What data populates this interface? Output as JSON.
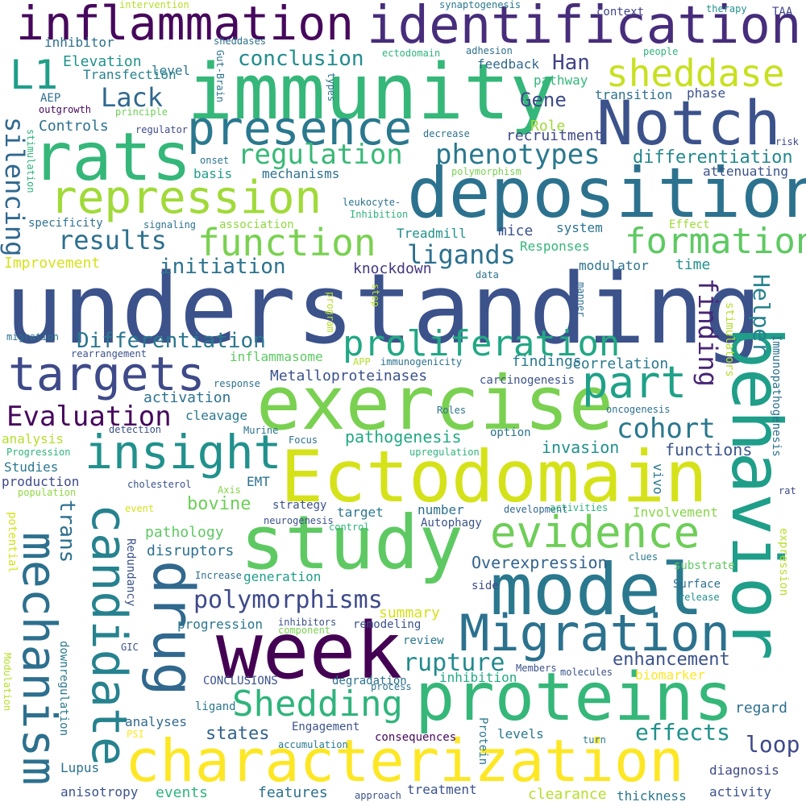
{
  "words": [
    {
      "text": "understanding",
      "color": "#3b528b"
    },
    {
      "text": "Ectodomain",
      "color": "#d5e21a"
    },
    {
      "text": "exercise",
      "color": "#7ad151"
    },
    {
      "text": "immunity",
      "color": "#35b779"
    },
    {
      "text": "deposition",
      "color": "#2c728e"
    },
    {
      "text": "behavior",
      "color": "#1f9e89"
    },
    {
      "text": "characterization",
      "color": "#fde725"
    },
    {
      "text": "week",
      "color": "#440154"
    },
    {
      "text": "study",
      "color": "#5ec962"
    },
    {
      "text": "proteins",
      "color": "#35b779"
    },
    {
      "text": "model",
      "color": "#2a788e"
    },
    {
      "text": "identification",
      "color": "#472d7b"
    },
    {
      "text": "inflammation",
      "color": "#46085c"
    },
    {
      "text": "Notch",
      "color": "#3b528b"
    },
    {
      "text": "rats",
      "color": "#35b779"
    },
    {
      "text": "presence",
      "color": "#2a788e"
    },
    {
      "text": "repression",
      "color": "#a0da39"
    },
    {
      "text": "Migration",
      "color": "#2c728e"
    },
    {
      "text": "drug",
      "color": "#31688e"
    },
    {
      "text": "candidate",
      "color": "#26828e"
    },
    {
      "text": "mechanism",
      "color": "#2d708e"
    },
    {
      "text": "insight",
      "color": "#21918c"
    },
    {
      "text": "targets",
      "color": "#3e4a89"
    },
    {
      "text": "evidence",
      "color": "#6ece58"
    },
    {
      "text": "function",
      "color": "#7ad151"
    },
    {
      "text": "formation",
      "color": "#5ec962"
    },
    {
      "text": "sheddase",
      "color": "#c8e020"
    },
    {
      "text": "proliferation",
      "color": "#22a884"
    },
    {
      "text": "part",
      "color": "#1fa187"
    },
    {
      "text": "Shedding",
      "color": "#2fb47c"
    },
    {
      "text": "L1",
      "color": "#1f9e89"
    },
    {
      "text": "polymorphisms",
      "color": "#3e4a89"
    },
    {
      "text": "rupture",
      "color": "#238a8d"
    },
    {
      "text": "effects",
      "color": "#20928c"
    },
    {
      "text": "regulation",
      "color": "#38b977"
    },
    {
      "text": "phenotypes",
      "color": "#2a788e"
    },
    {
      "text": "Evaluation",
      "color": "#46085c"
    },
    {
      "text": "cohort",
      "color": "#2a788e"
    },
    {
      "text": "silencing",
      "color": "#31688e"
    },
    {
      "text": "finding",
      "color": "#482576"
    },
    {
      "text": "Helper",
      "color": "#26828e"
    },
    {
      "text": "results",
      "color": "#2d708e"
    },
    {
      "text": "ligands",
      "color": "#2d708e"
    },
    {
      "text": "Lack",
      "color": "#31688e"
    },
    {
      "text": "conclusion",
      "color": "#228c8d"
    },
    {
      "text": "Differentiation",
      "color": "#2a768e"
    },
    {
      "text": "initiation",
      "color": "#2c728e"
    },
    {
      "text": "differentiation",
      "color": "#23898e"
    },
    {
      "text": "Gene",
      "color": "#3e4a89"
    },
    {
      "text": "Han",
      "color": "#414487"
    },
    {
      "text": "loop",
      "color": "#3e4a89"
    },
    {
      "text": "trans",
      "color": "#2d708e"
    },
    {
      "text": "Overexpression",
      "color": "#33638d"
    },
    {
      "text": "enhancement",
      "color": "#3b528b"
    },
    {
      "text": "states",
      "color": "#33638d"
    },
    {
      "text": "pathogenesis",
      "color": "#22a884"
    },
    {
      "text": "bovine",
      "color": "#6ece58"
    },
    {
      "text": "functions",
      "color": "#3a548c"
    },
    {
      "text": "invasion",
      "color": "#21918c"
    },
    {
      "text": "Metalloproteinases",
      "color": "#3b528b"
    },
    {
      "text": "findings",
      "color": "#2a788e"
    },
    {
      "text": "correlation",
      "color": "#2a788e"
    },
    {
      "text": "inflammasome",
      "color": "#5ec962"
    },
    {
      "text": "activation",
      "color": "#2c728e"
    },
    {
      "text": "cleavage",
      "color": "#2a788e"
    },
    {
      "text": "knockdown",
      "color": "#453781"
    },
    {
      "text": "Treadmill",
      "color": "#21918c"
    },
    {
      "text": "mice",
      "color": "#3b528b"
    },
    {
      "text": "system",
      "color": "#2c728e"
    },
    {
      "text": "modulator",
      "color": "#2c728e"
    },
    {
      "text": "time",
      "color": "#21918c"
    },
    {
      "text": "Responses",
      "color": "#35b779"
    },
    {
      "text": "mechanisms",
      "color": "#2d708e"
    },
    {
      "text": "basis",
      "color": "#1f9e89"
    },
    {
      "text": "Controls",
      "color": "#2c728e"
    },
    {
      "text": "Elevation",
      "color": "#21918c"
    },
    {
      "text": "Transfection",
      "color": "#26828e"
    },
    {
      "text": "level",
      "color": "#2a788e"
    },
    {
      "text": "inhibitor",
      "color": "#2d708e"
    },
    {
      "text": "Role",
      "color": "#a0da39"
    },
    {
      "text": "recruitment",
      "color": "#3e4a89"
    },
    {
      "text": "feedback",
      "color": "#31688e"
    },
    {
      "text": "pathway",
      "color": "#35b779"
    },
    {
      "text": "transition",
      "color": "#2d708e"
    },
    {
      "text": "phase",
      "color": "#3b528b"
    },
    {
      "text": "attenuating",
      "color": "#3b528b"
    },
    {
      "text": "context",
      "color": "#414487"
    },
    {
      "text": "therapy",
      "color": "#21918c"
    },
    {
      "text": "TAA",
      "color": "#404688"
    },
    {
      "text": "Improvement",
      "color": "#d5e21a"
    },
    {
      "text": "specificity",
      "color": "#2d708e"
    },
    {
      "text": "association",
      "color": "#90d743"
    },
    {
      "text": "Effect",
      "color": "#a0da39"
    },
    {
      "text": "summary",
      "color": "#d5e21a"
    },
    {
      "text": "generation",
      "color": "#1f9e89"
    },
    {
      "text": "progression",
      "color": "#2a768e"
    },
    {
      "text": "remodeling",
      "color": "#3b528b"
    },
    {
      "text": "review",
      "color": "#2a788e"
    },
    {
      "text": "pathology",
      "color": "#5ec962"
    },
    {
      "text": "disruptors",
      "color": "#2d708e"
    },
    {
      "text": "Redundancy",
      "color": "#3b528b"
    },
    {
      "text": "strategy",
      "color": "#3b528b"
    },
    {
      "text": "target",
      "color": "#2a788e"
    },
    {
      "text": "number",
      "color": "#2d708e"
    },
    {
      "text": "Involvement",
      "color": "#86d549"
    },
    {
      "text": "Autophagy",
      "color": "#3b528b"
    },
    {
      "text": "EMT",
      "color": "#2d708e"
    },
    {
      "text": "vivo",
      "color": "#2a788e"
    },
    {
      "text": "Immunopathogenesis",
      "color": "#2c728e"
    },
    {
      "text": "stimulators",
      "color": "#b5de2b"
    },
    {
      "text": "Studies",
      "color": "#2a788e"
    },
    {
      "text": "production",
      "color": "#3e4a89"
    },
    {
      "text": "analysis",
      "color": "#b5de2b"
    },
    {
      "text": "Lupus",
      "color": "#2c728e"
    },
    {
      "text": "anisotropy",
      "color": "#3b528b"
    },
    {
      "text": "events",
      "color": "#2fb47c"
    },
    {
      "text": "features",
      "color": "#2c728e"
    },
    {
      "text": "treatment",
      "color": "#3b528b"
    },
    {
      "text": "clearance",
      "color": "#b5de2b"
    },
    {
      "text": "thickness",
      "color": "#2a788e"
    },
    {
      "text": "activity",
      "color": "#3b528b"
    },
    {
      "text": "diagnosis",
      "color": "#3e4a89"
    },
    {
      "text": "regard",
      "color": "#2d708e"
    },
    {
      "text": "biomarker",
      "color": "#fde725"
    },
    {
      "text": "degradation",
      "color": "#2c728e"
    },
    {
      "text": "inhibition",
      "color": "#22a884"
    },
    {
      "text": "CONCLUSIONS",
      "color": "#3b528b"
    },
    {
      "text": "analyses",
      "color": "#31688e"
    },
    {
      "text": "ligand",
      "color": "#2a788e"
    },
    {
      "text": "Engagement",
      "color": "#3b528b"
    },
    {
      "text": "consequences",
      "color": "#46085c"
    },
    {
      "text": "levels",
      "color": "#2a788e"
    },
    {
      "text": "downregulation",
      "color": "#2a788e"
    },
    {
      "text": "substrate",
      "color": "#5ec962"
    },
    {
      "text": "Surface",
      "color": "#2d708e"
    },
    {
      "text": "side",
      "color": "#3e4a89"
    },
    {
      "text": "expression",
      "color": "#b5de2b"
    },
    {
      "text": "potential",
      "color": "#d5e21a"
    },
    {
      "text": "Modulation",
      "color": "#b5de2b"
    },
    {
      "text": "rat",
      "color": "#3e4a89"
    },
    {
      "text": "carcinogenesis",
      "color": "#3b528b"
    },
    {
      "text": "option",
      "color": "#2c728e"
    },
    {
      "text": "upregulation",
      "color": "#2fb47c"
    },
    {
      "text": "oncogenesis",
      "color": "#2d708e"
    },
    {
      "text": "cholesterol",
      "color": "#3b528b"
    },
    {
      "text": "Axis",
      "color": "#86d549"
    },
    {
      "text": "population",
      "color": "#90d743"
    },
    {
      "text": "development",
      "color": "#31688e"
    },
    {
      "text": "activities",
      "color": "#2fb47c"
    },
    {
      "text": "event",
      "color": "#d5e21a"
    },
    {
      "text": "neurogenesis",
      "color": "#3b528b"
    },
    {
      "text": "control",
      "color": "#2fb47c"
    },
    {
      "text": "clues",
      "color": "#2a788e"
    },
    {
      "text": "release",
      "color": "#21918c"
    },
    {
      "text": "Increase",
      "color": "#2d708e"
    },
    {
      "text": "inhibitors",
      "color": "#3b528b"
    },
    {
      "text": "component",
      "color": "#7ad151"
    },
    {
      "text": "GIC",
      "color": "#3b528b"
    },
    {
      "text": "Members",
      "color": "#3b528b"
    },
    {
      "text": "molecules",
      "color": "#3b528b"
    },
    {
      "text": "process",
      "color": "#2c728e"
    },
    {
      "text": "PSI",
      "color": "#fde725"
    },
    {
      "text": "accumulation",
      "color": "#2a788e"
    },
    {
      "text": "Protein",
      "color": "#2a788e"
    },
    {
      "text": "turn",
      "color": "#2a788e"
    },
    {
      "text": "approach",
      "color": "#3b528b"
    },
    {
      "text": "intervention",
      "color": "#b5de2b"
    },
    {
      "text": "synaptogenesis",
      "color": "#2a788e"
    },
    {
      "text": "sheddases",
      "color": "#2c728e"
    },
    {
      "text": "ectodomain",
      "color": "#2fb47c"
    },
    {
      "text": "adhesion",
      "color": "#2d708e"
    },
    {
      "text": "people",
      "color": "#2fb47c"
    },
    {
      "text": "Gut-Brain",
      "color": "#2c728e"
    },
    {
      "text": "AEP",
      "color": "#2d708e"
    },
    {
      "text": "outgrowth",
      "color": "#46085c"
    },
    {
      "text": "principle",
      "color": "#6ece58"
    },
    {
      "text": "regulator",
      "color": "#3e4a89"
    },
    {
      "text": "types",
      "color": "#2c728e"
    },
    {
      "text": "stimulation",
      "color": "#2fb47c"
    },
    {
      "text": "onset",
      "color": "#2c728e"
    },
    {
      "text": "decrease",
      "color": "#2c728e"
    },
    {
      "text": "risk",
      "color": "#3e4a89"
    },
    {
      "text": "polymorphism",
      "color": "#7ad151"
    },
    {
      "text": "leukocyte-",
      "color": "#2c728e"
    },
    {
      "text": "Inhibition",
      "color": "#2fb47c"
    },
    {
      "text": "signaling",
      "color": "#2c728e"
    },
    {
      "text": "data",
      "color": "#2c728e"
    },
    {
      "text": "program",
      "color": "#b5de2b"
    },
    {
      "text": "step",
      "color": "#b5de2b"
    },
    {
      "text": "manner",
      "color": "#2c728e"
    },
    {
      "text": "migration",
      "color": "#2c728e"
    },
    {
      "text": "rearrangement",
      "color": "#3b528b"
    },
    {
      "text": "APP",
      "color": "#b5de2b"
    },
    {
      "text": "immunogenicity",
      "color": "#2c728e"
    },
    {
      "text": "response",
      "color": "#2c728e"
    },
    {
      "text": "detection",
      "color": "#3b528b"
    },
    {
      "text": "Murine",
      "color": "#2c728e"
    },
    {
      "text": "Focus",
      "color": "#2c728e"
    },
    {
      "text": "Roles",
      "color": "#2c728e"
    },
    {
      "text": "Progression",
      "color": "#2fb47c"
    }
  ]
}
